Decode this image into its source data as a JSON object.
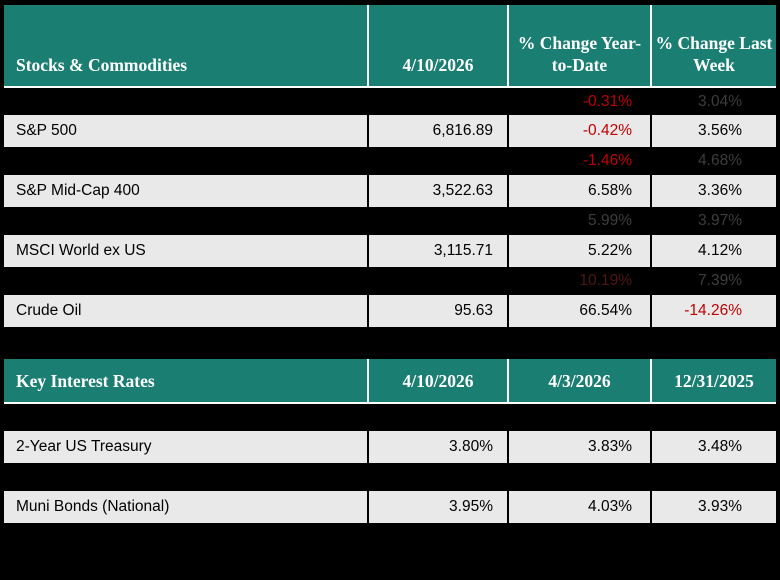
{
  "colors": {
    "header_bg": "#1b7e72",
    "row_light_bg": "#e9e9e9",
    "row_dark_bg": "#000000",
    "negative_red": "#c00000",
    "dim_gray": "#3d3d3d",
    "dim_red": "#4f1515"
  },
  "sections": [
    {
      "name": "Stocks & Commodities",
      "header": [
        "Stocks & Commodities",
        "4/10/2026",
        "% Change Year-to-Date",
        "% Change Last Week"
      ],
      "rows": [
        {
          "type": "dark",
          "cells": [
            "",
            "",
            "-0.31%",
            "3.04%"
          ],
          "styles": [
            "",
            "",
            "red",
            "dim"
          ]
        },
        {
          "type": "light",
          "cells": [
            "S&P 500",
            "6,816.89",
            "-0.42%",
            "3.56%"
          ],
          "styles": [
            "",
            "",
            "red",
            ""
          ]
        },
        {
          "type": "dark",
          "cells": [
            "",
            "",
            "-1.46%",
            "4.68%"
          ],
          "styles": [
            "",
            "",
            "red",
            "dim"
          ]
        },
        {
          "type": "light",
          "cells": [
            "S&P Mid-Cap 400",
            "3,522.63",
            "6.58%",
            "3.36%"
          ],
          "styles": [
            "",
            "",
            "",
            ""
          ]
        },
        {
          "type": "dark",
          "cells": [
            "",
            "",
            "5.99%",
            "3.97%"
          ],
          "styles": [
            "",
            "",
            "dim",
            "dim"
          ]
        },
        {
          "type": "light",
          "cells": [
            "MSCI World ex US",
            "3,115.71",
            "5.22%",
            "4.12%"
          ],
          "styles": [
            "",
            "",
            "",
            ""
          ]
        },
        {
          "type": "dark",
          "cells": [
            "",
            "",
            "10.19%",
            "7.39%"
          ],
          "styles": [
            "",
            "",
            "dimred",
            "dim"
          ]
        },
        {
          "type": "light",
          "cells": [
            "Crude Oil",
            "95.63",
            "66.54%",
            "-14.26%"
          ],
          "styles": [
            "",
            "",
            "",
            "red"
          ]
        }
      ]
    },
    {
      "name": "Key Interest Rates",
      "header": [
        "Key Interest Rates",
        "4/10/2026",
        "4/3/2026",
        "12/31/2025"
      ],
      "rows": [
        {
          "type": "dark",
          "cells": [
            "",
            "",
            "",
            ""
          ],
          "styles": [
            "",
            "",
            "",
            ""
          ]
        },
        {
          "type": "light",
          "cells": [
            "2-Year US Treasury",
            "3.80%",
            "3.83%",
            "3.48%"
          ],
          "styles": [
            "",
            "",
            "",
            ""
          ]
        },
        {
          "type": "dark",
          "cells": [
            "",
            "",
            "",
            ""
          ],
          "styles": [
            "",
            "",
            "",
            ""
          ]
        },
        {
          "type": "light",
          "cells": [
            "Muni Bonds (National)",
            "3.95%",
            "4.03%",
            "3.93%"
          ],
          "styles": [
            "",
            "",
            "",
            ""
          ]
        }
      ]
    }
  ]
}
